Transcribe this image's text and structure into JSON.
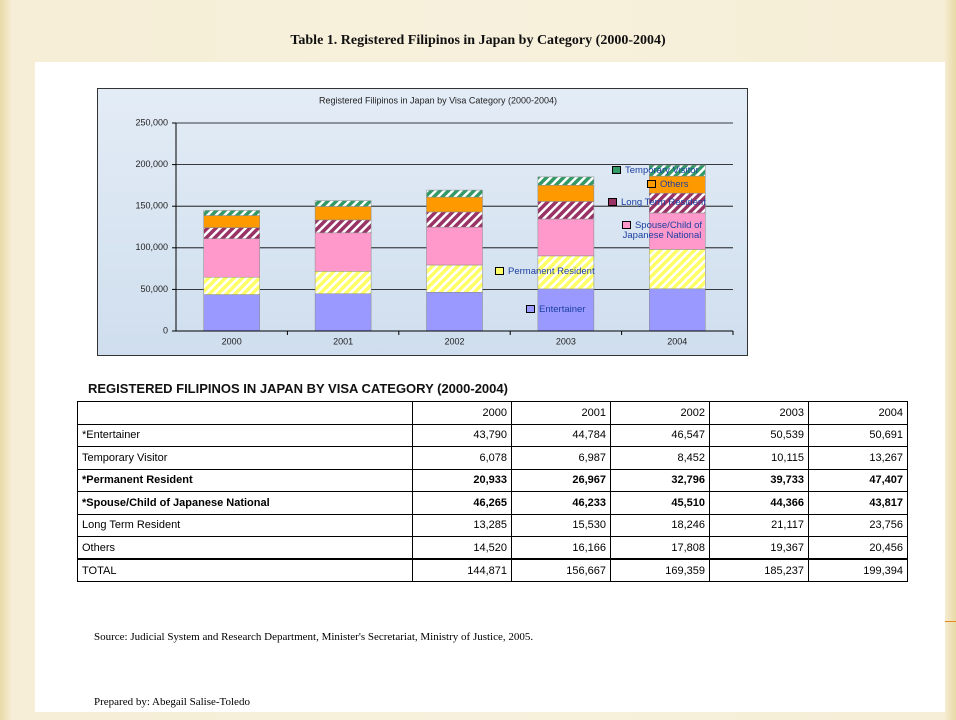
{
  "title": "Table 1. Registered Filipinos in Japan by Category (2000-2004)",
  "chart_data": {
    "type": "bar",
    "stacked": true,
    "title": "Registered Filipinos in Japan by Visa Category (2000-2004)",
    "categories": [
      "2000",
      "2001",
      "2002",
      "2003",
      "2004"
    ],
    "series": [
      {
        "name": "Entertainer",
        "color": "#9999ff",
        "values": [
          43790,
          44784,
          46547,
          50539,
          50691
        ]
      },
      {
        "name": "Permanent Resident",
        "color": "#ffff66",
        "pattern": "hatch",
        "values": [
          20933,
          26967,
          32796,
          39733,
          47407
        ]
      },
      {
        "name": "Spouse/Child of Japanese National",
        "color": "#ff99cc",
        "values": [
          46265,
          46233,
          45510,
          44366,
          43817
        ]
      },
      {
        "name": "Long Term Resident",
        "color": "#993366",
        "pattern": "hatch",
        "values": [
          13285,
          15530,
          18246,
          21117,
          23756
        ]
      },
      {
        "name": "Others",
        "color": "#ff9900",
        "values": [
          14520,
          16166,
          17808,
          19367,
          20456
        ]
      },
      {
        "name": "Temporary Visitor",
        "color": "#339966",
        "pattern": "hatch",
        "values": [
          6078,
          6987,
          8452,
          10115,
          13267
        ]
      }
    ],
    "ylim": [
      0,
      250000
    ],
    "yticks": [
      0,
      {
        "value": 50000,
        "label": "50,000"
      },
      {
        "value": 100000,
        "label": "100,000"
      },
      {
        "value": 150000,
        "label": "150,000"
      },
      {
        "value": 200000,
        "label": "200,000"
      },
      {
        "value": 250000,
        "label": "250,000"
      }
    ],
    "grid": true
  },
  "table": {
    "title": "REGISTERED FILIPINOS IN JAPAN BY VISA CATEGORY (2000-2004)",
    "columns": [
      "2000",
      "2001",
      "2002",
      "2003",
      "2004"
    ],
    "rows": [
      {
        "label": "*Entertainer",
        "cells": [
          "43,790",
          "44,784",
          "46,547",
          "50,539",
          "50,691"
        ]
      },
      {
        "label": "Temporary Visitor",
        "cells": [
          "6,078",
          "6,987",
          "8,452",
          "10,115",
          "13,267"
        ]
      },
      {
        "label": "*Permanent Resident",
        "cells": [
          "20,933",
          "26,967",
          "32,796",
          "39,733",
          "47,407"
        ],
        "bold": true
      },
      {
        "label": "*Spouse/Child of Japanese National",
        "cells": [
          "46,265",
          "46,233",
          "45,510",
          "44,366",
          "43,817"
        ],
        "bold": true
      },
      {
        "label": "Long Term Resident",
        "cells": [
          "13,285",
          "15,530",
          "18,246",
          "21,117",
          "23,756"
        ]
      },
      {
        "label": "Others",
        "cells": [
          "14,520",
          "16,166",
          "17,808",
          "19,367",
          "20,456"
        ]
      },
      {
        "label": "TOTAL",
        "cells": [
          "144,871",
          "156,667",
          "169,359",
          "185,237",
          "199,394"
        ]
      }
    ]
  },
  "source": "Source:  Judicial System and Research Department, Minister's Secretariat, Ministry of Justice, 2005.",
  "prepared": "Prepared by: Abegail Salise-Toledo"
}
